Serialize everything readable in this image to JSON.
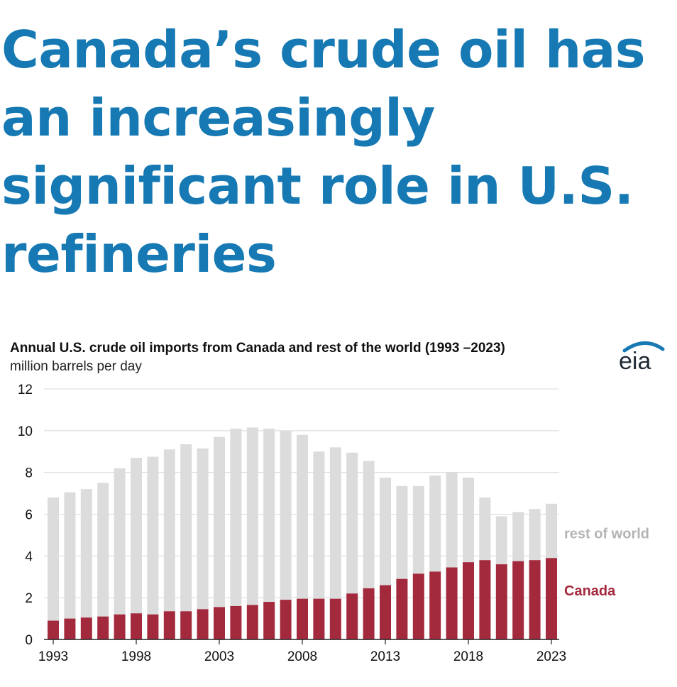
{
  "headline": "Canada’s crude oil has an increasingly significant role in U.S. refineries",
  "logo_text": "eia",
  "colors": {
    "headline": "#1679b3",
    "canada": "#a32a3d",
    "rest_of_world": "#dcdcdc",
    "rest_label": "#b4b4b4",
    "grid": "#d8d8d8"
  },
  "chart_data": {
    "type": "bar",
    "stacked": true,
    "title": "Annual U.S. crude oil imports from Canada and rest of the world (1993      –2023)",
    "subtitle": "million barrels per day",
    "ylim": [
      0,
      12
    ],
    "yticks": [
      "0",
      "2",
      "4",
      "6",
      "8",
      "10",
      "12"
    ],
    "xticks": [
      "1993",
      "1998",
      "2003",
      "2008",
      "2013",
      "2018",
      "2023"
    ],
    "grid": true,
    "categories": [
      "1993",
      "1994",
      "1995",
      "1996",
      "1997",
      "1998",
      "1999",
      "2000",
      "2001",
      "2002",
      "2003",
      "2004",
      "2005",
      "2006",
      "2007",
      "2008",
      "2009",
      "2010",
      "2011",
      "2012",
      "2013",
      "2014",
      "2015",
      "2016",
      "2017",
      "2018",
      "2019",
      "2020",
      "2021",
      "2022",
      "2023"
    ],
    "series": [
      {
        "name": "Canada",
        "values": [
          0.9,
          1.0,
          1.05,
          1.1,
          1.2,
          1.25,
          1.2,
          1.35,
          1.35,
          1.45,
          1.55,
          1.6,
          1.65,
          1.8,
          1.9,
          1.95,
          1.95,
          1.95,
          2.2,
          2.45,
          2.6,
          2.9,
          3.15,
          3.25,
          3.45,
          3.7,
          3.8,
          3.6,
          3.75,
          3.8,
          3.9
        ]
      },
      {
        "name": "rest of world",
        "values": [
          5.9,
          6.05,
          6.15,
          6.4,
          7.0,
          7.45,
          7.55,
          7.75,
          8.0,
          7.7,
          8.15,
          8.5,
          8.5,
          8.3,
          8.1,
          7.85,
          7.05,
          7.25,
          6.75,
          6.1,
          5.15,
          4.45,
          4.2,
          4.6,
          4.55,
          4.05,
          3.0,
          2.3,
          2.35,
          2.45,
          2.6
        ]
      }
    ]
  }
}
